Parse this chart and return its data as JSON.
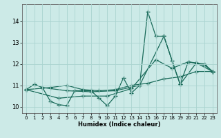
{
  "xlabel": "Humidex (Indice chaleur)",
  "bg_color": "#cceae7",
  "grid_color": "#aad4d0",
  "line_color": "#1a6b5a",
  "marker": "+",
  "markersize": 4,
  "linewidth": 0.9,
  "xlim": [
    -0.5,
    23.5
  ],
  "ylim": [
    9.7,
    14.8
  ],
  "xticks": [
    0,
    1,
    2,
    3,
    4,
    5,
    6,
    7,
    8,
    9,
    10,
    11,
    12,
    13,
    14,
    15,
    16,
    17,
    18,
    19,
    20,
    21,
    22,
    23
  ],
  "yticks": [
    10,
    11,
    12,
    13,
    14
  ],
  "series": [
    [
      [
        0,
        10.8
      ],
      [
        1,
        11.05
      ],
      [
        2,
        10.9
      ],
      [
        3,
        10.25
      ],
      [
        4,
        10.1
      ],
      [
        5,
        10.05
      ],
      [
        6,
        10.75
      ],
      [
        7,
        10.75
      ],
      [
        8,
        10.75
      ],
      [
        9,
        10.4
      ],
      [
        10,
        10.05
      ],
      [
        11,
        10.5
      ],
      [
        12,
        11.35
      ],
      [
        13,
        10.65
      ],
      [
        14,
        11.0
      ],
      [
        15,
        14.45
      ],
      [
        16,
        13.3
      ],
      [
        17,
        13.3
      ],
      [
        18,
        12.15
      ],
      [
        19,
        11.05
      ],
      [
        20,
        12.1
      ],
      [
        21,
        12.05
      ],
      [
        22,
        12.0
      ],
      [
        23,
        11.65
      ]
    ],
    [
      [
        0,
        10.8
      ],
      [
        3,
        10.9
      ],
      [
        5,
        11.0
      ],
      [
        7,
        10.8
      ],
      [
        9,
        10.75
      ],
      [
        11,
        10.8
      ],
      [
        13,
        11.0
      ],
      [
        15,
        11.1
      ],
      [
        17,
        11.3
      ],
      [
        19,
        11.4
      ],
      [
        21,
        11.65
      ],
      [
        23,
        11.65
      ]
    ],
    [
      [
        0,
        10.8
      ],
      [
        4,
        10.4
      ],
      [
        7,
        10.5
      ],
      [
        10,
        10.5
      ],
      [
        13,
        10.85
      ],
      [
        16,
        12.2
      ],
      [
        18,
        11.8
      ],
      [
        20,
        12.1
      ],
      [
        22,
        11.95
      ],
      [
        23,
        11.65
      ]
    ],
    [
      [
        2,
        10.9
      ],
      [
        5,
        10.75
      ],
      [
        8,
        10.7
      ],
      [
        11,
        10.75
      ],
      [
        14,
        11.0
      ],
      [
        17,
        13.3
      ],
      [
        19,
        11.05
      ],
      [
        21,
        12.05
      ],
      [
        23,
        11.65
      ]
    ]
  ]
}
